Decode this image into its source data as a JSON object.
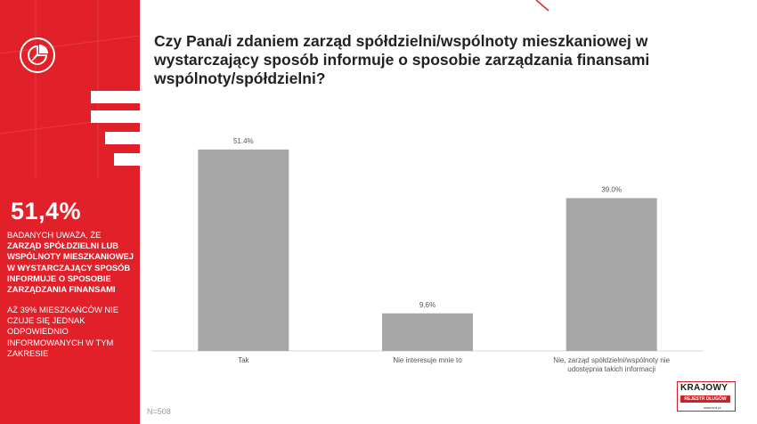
{
  "sidebar": {
    "headline": "51,4%",
    "text1_normal": "BADANYCH UWAŻA, ŻE ",
    "text1_bold": "ZARZĄD SPÓŁDZIELNI LUB WSPÓLNOTY MIESZKANIOWEJ W WYSTARCZAJĄCY SPOSÓB INFORMUJE O SPOSOBIE ZARZĄDZANIA FINANSAMI",
    "text2": "AŻ 39% MIESZKAŃCÓW NIE CZUJE SIĘ JEDNAK ODPOWIEDNIO INFORMOWANYCH W TYM ZAKRESIE",
    "accent_color": "#e2202a"
  },
  "sample_size": "N=508",
  "brand": {
    "name": "KRAJOWY",
    "subtitle": "REJESTR DŁUGÓW",
    "url": "www.krd.pl"
  },
  "chart_data": {
    "type": "bar",
    "title": "Czy Pana/i zdaniem zarząd spółdzielni/wspólnoty mieszkaniowej w wystarczający sposób informuje o sposobie zarządzania finansami wspólnoty/spółdzielni?",
    "categories": [
      [
        "Tak"
      ],
      [
        "Nie interesuje mnie to"
      ],
      [
        "Nie, zarząd spółdzielni/wspólnoty nie",
        "udostępnia takich informacji"
      ]
    ],
    "values": [
      51.4,
      9.6,
      39.0
    ],
    "data_labels": [
      "51.4%",
      "9.6%",
      "39.0%"
    ],
    "ylim": [
      0,
      60
    ],
    "bar_color": "#a6a6a6",
    "grid": false
  }
}
